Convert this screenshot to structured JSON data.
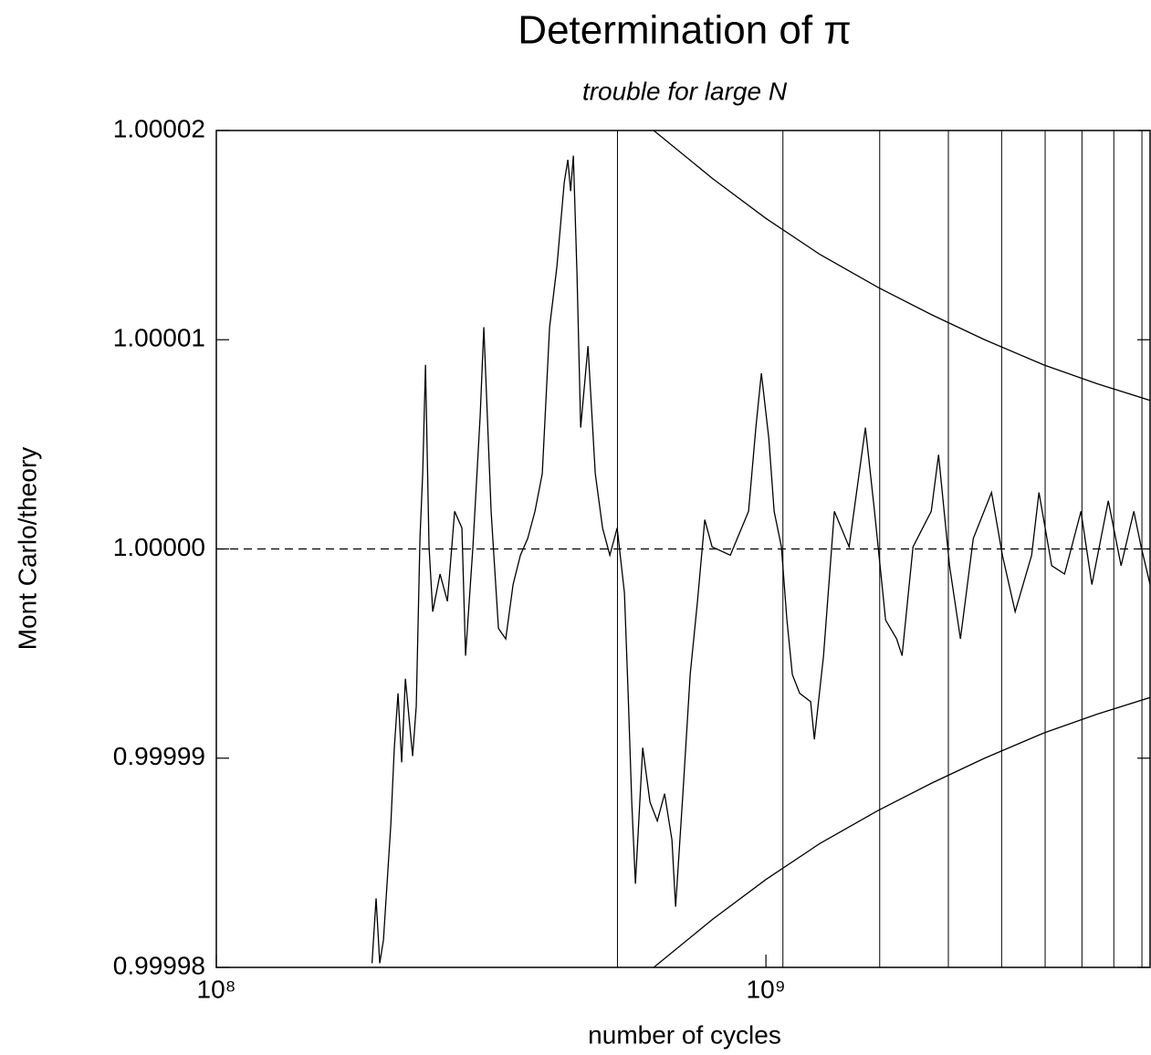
{
  "chart_data": {
    "type": "line",
    "title": "Determination of π",
    "subtitle": "trouble for large N",
    "xlabel": "number of cycles",
    "ylabel": "Mont Carlo/theory",
    "xscale": "log",
    "xlim": [
      100000000,
      5000000000
    ],
    "xticks": [
      {
        "value": 100000000,
        "label": "10⁸"
      },
      {
        "value": 1000000000,
        "label": "10⁹"
      }
    ],
    "ylim": [
      0.99998,
      1.00002
    ],
    "yticks": [
      0.99998,
      0.99999,
      {
        "value": 1,
        "label": "1.00000"
      },
      1.00001,
      1.00002
    ],
    "hline": 1,
    "vlines": [
      536870912,
      1073741824,
      1610612736,
      2147483648,
      2684354560,
      3221225472,
      3758096384,
      4294967296,
      4831838208
    ],
    "series": [
      {
        "color": "#000000",
        "x": [
          192000000,
          195300000,
          198300000,
          201400000,
          207700000,
          210800000,
          214100000,
          217400000,
          220800000,
          227600000,
          231100000,
          234700000,
          237400000,
          240200000,
          243800000,
          247600000,
          255300000,
          263300000,
          271400000,
          279800000,
          284100000,
          293000000,
          302100000,
          306700000,
          316200000,
          326100000,
          336200000,
          346700000,
          357500000,
          368600000,
          380000000,
          391800000,
          404000000,
          416600000,
          429500000,
          436100000,
          441200000,
          446300000,
          453100000,
          460200000,
          474500000,
          489200000,
          504400000,
          520000000,
          536200000,
          552800000,
          561400000,
          570000000,
          578800000,
          596800000,
          615200000,
          634400000,
          654100000,
          674500000,
          684900000,
          706200000,
          728100000,
          750700000,
          774000000,
          798000000,
          861400000,
          929800000,
          958700000,
          981100000,
          1012000000,
          1035000000,
          1067000000,
          1092000000,
          1117000000,
          1152000000,
          1206000000,
          1225000000,
          1273000000,
          1332000000,
          1417000000,
          1517000000,
          1576000000,
          1651000000,
          1729000000,
          1769000000,
          1852000000,
          1999000000,
          2061000000,
          2158000000,
          2259000000,
          2384000000,
          2573000000,
          2693000000,
          2841000000,
          3044000000,
          3139000000,
          3311000000,
          3494000000,
          3743000000,
          3918000000,
          4197000000,
          4428000000,
          4671000000,
          4816000000,
          5000000000
        ],
        "values": [
          0.9999802,
          0.9999833,
          0.9999802,
          0.9999813,
          0.9999868,
          0.9999905,
          0.9999931,
          0.9999898,
          0.9999938,
          0.9999901,
          0.9999925,
          1.0000005,
          1.0000036,
          1.0000088,
          1.0000001,
          0.999997,
          0.9999988,
          0.9999975,
          1.0000018,
          1.000001,
          0.9999949,
          1.0000001,
          1.0000064,
          1.0000106,
          1.0000018,
          0.9999962,
          0.9999957,
          0.9999983,
          0.9999997,
          1.0000005,
          1.0000018,
          1.0000036,
          1.0000106,
          1.0000135,
          1.0000175,
          1.0000186,
          1.0000171,
          1.0000188,
          1.0000132,
          1.0000058,
          1.0000097,
          1.0000036,
          1.000001,
          0.9999997,
          1.000001,
          0.9999979,
          0.9999931,
          0.9999879,
          0.999984,
          0.9999905,
          0.9999879,
          0.999987,
          0.9999883,
          0.9999861,
          0.9999829,
          0.9999883,
          0.999994,
          0.9999975,
          1.0000014,
          1.0000001,
          0.9999997,
          1.0000018,
          1.0000058,
          1.0000084,
          1.0000053,
          1.0000018,
          1.0000001,
          0.9999966,
          0.999994,
          0.9999931,
          0.9999927,
          0.9999909,
          0.9999949,
          1.0000018,
          1.0000001,
          1.0000058,
          1.0000018,
          0.9999966,
          0.9999957,
          0.9999949,
          1.0000001,
          1.0000018,
          1.0000045,
          0.9999992,
          0.9999957,
          1.0000005,
          1.0000027,
          0.9999997,
          0.999997,
          0.9999997,
          1.0000027,
          0.9999992,
          0.9999988,
          1.0000018,
          0.9999983,
          1.0000023,
          0.9999992,
          1.0000018,
          1.0000001,
          0.9999983
        ]
      },
      {
        "color": "#000000",
        "x": [
          625000000,
          800000000,
          1000000000,
          1250000000,
          1600000000,
          2000000000,
          2500000000,
          3200000000,
          4000000000,
          5000000000
        ],
        "values": [
          1.00002,
          1.0000177,
          1.0000158,
          1.0000141,
          1.0000125,
          1.0000112,
          1.00001,
          1.0000088,
          1.0000079,
          1.0000071
        ]
      },
      {
        "color": "#000000",
        "x": [
          625000000,
          800000000,
          1000000000,
          1250000000,
          1600000000,
          2000000000,
          2500000000,
          3200000000,
          4000000000,
          5000000000
        ],
        "values": [
          0.99998,
          0.9999823,
          0.9999842,
          0.9999859,
          0.9999875,
          0.9999888,
          0.99999,
          0.9999912,
          0.9999921,
          0.9999929
        ]
      }
    ]
  }
}
